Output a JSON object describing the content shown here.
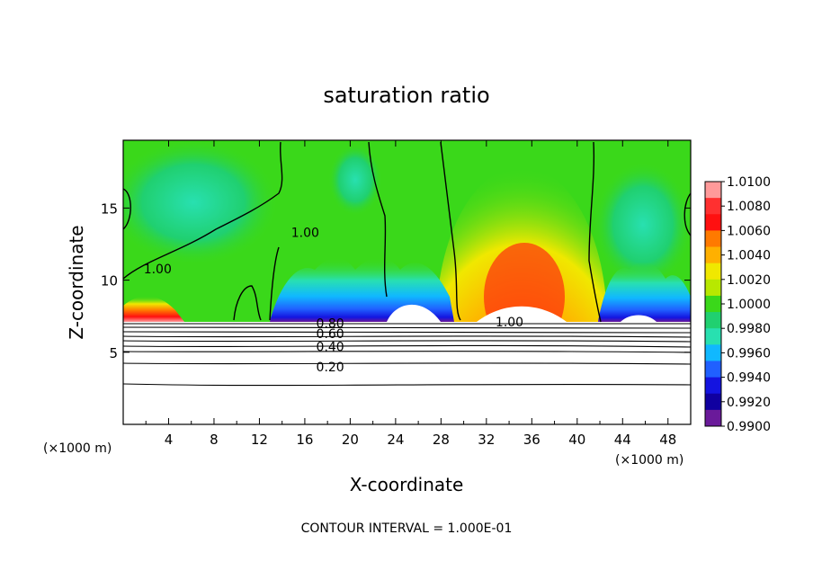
{
  "chart_data": {
    "type": "heatmap",
    "title": "saturation ratio",
    "xlabel": "X-coordinate",
    "ylabel": "Z-coordinate",
    "x_unit": "(×1000 m)",
    "x_unit_right": "(×1000 m)",
    "x_ticks": [
      "4",
      "8",
      "12",
      "16",
      "20",
      "24",
      "28",
      "32",
      "36",
      "40",
      "44",
      "48"
    ],
    "x_tick_values": [
      4,
      8,
      12,
      16,
      20,
      24,
      28,
      32,
      36,
      40,
      44,
      48
    ],
    "y_ticks": [
      "5",
      "10",
      "15"
    ],
    "y_tick_values": [
      5,
      10,
      15
    ],
    "xlim": [
      0,
      50
    ],
    "ylim": [
      0,
      19.7
    ],
    "colorbar": {
      "labels": [
        "1.0100",
        "1.0080",
        "1.0060",
        "1.0040",
        "1.0020",
        "1.0000",
        "0.9980",
        "0.9960",
        "0.9940",
        "0.9920",
        "0.9900"
      ],
      "values": [
        1.01,
        1.008,
        1.006,
        1.004,
        1.002,
        1.0,
        0.998,
        0.996,
        0.994,
        0.992,
        0.99
      ],
      "colors": [
        "#ff9a9a",
        "#ff3030",
        "#ff1010",
        "#ff7a00",
        "#ffb000",
        "#f0e800",
        "#b8e800",
        "#3ad81a",
        "#20d070",
        "#28e0b0",
        "#10b8ff",
        "#2060ff",
        "#1414e0",
        "#1000a0",
        "#6a1a9a"
      ]
    },
    "contour_labels": [
      {
        "text": "1.00",
        "x": 1.8,
        "z": 10.8
      },
      {
        "text": "1.00",
        "x": 14.8,
        "z": 13.3
      },
      {
        "text": "1.00",
        "x": 32.8,
        "z": 7.1
      },
      {
        "text": "0.80",
        "x": 17.0,
        "z": 7.0
      },
      {
        "text": "0.60",
        "x": 17.0,
        "z": 6.3
      },
      {
        "text": "0.40",
        "x": 17.0,
        "z": 5.4
      },
      {
        "text": "0.20",
        "x": 17.0,
        "z": 4.0
      }
    ],
    "footer": "CONTOUR INTERVAL = 1.000E-01"
  }
}
